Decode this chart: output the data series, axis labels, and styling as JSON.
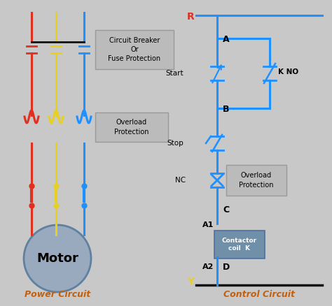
{
  "bg_color": "#c8c8c8",
  "blue": "#1e90ff",
  "red": "#e03020",
  "yellow": "#e8d020",
  "black": "#111111",
  "dark_gray": "#555555",
  "motor_fill": "#99aabf",
  "motor_edge": "#6080a0",
  "box_fill": "#bbbbbb",
  "box_edge": "#999999",
  "coil_fill": "#7090aa",
  "title_color": "#c06010",
  "title_power": "Power Circuit",
  "title_control": "Control Circuit",
  "label_R": "R",
  "label_Y": "Y",
  "label_A": "A",
  "label_B": "B",
  "label_C": "C",
  "label_A1": "A1",
  "label_A2": "A2",
  "label_D": "D",
  "label_Start": "Start",
  "label_Stop": "Stop",
  "label_NC": "NC",
  "label_KNO": "K NO",
  "label_Motor": "Motor",
  "label_CB": "Circuit Breaker\nOr\nFuse Protection",
  "label_OL_power": "Overload\nProtection",
  "label_OL_control": "Overload\nProtection",
  "label_coil": "Contactor\ncoil  K"
}
